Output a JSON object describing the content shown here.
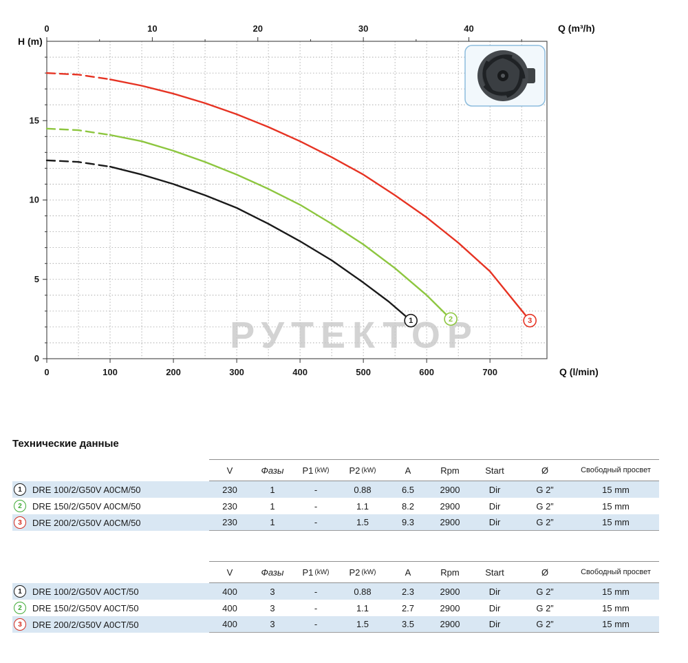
{
  "section": {
    "title": "Технические данные"
  },
  "chart": {
    "y_axis_label": "H (m)",
    "top_axis_label": "Q (m³/h)",
    "bottom_axis_label": "Q (l/min)",
    "top_ticks": [
      0,
      10,
      20,
      30,
      40
    ],
    "bottom_ticks": [
      0,
      100,
      200,
      300,
      400,
      500,
      600,
      700
    ],
    "y_ticks": [
      0,
      5,
      10,
      15
    ],
    "watermark": "РУТЕКТОР"
  },
  "chart_data": {
    "type": "line",
    "title": "Pump performance curves H-Q",
    "xlabel": "Q (l/min)",
    "x2label": "Q (m³/h)",
    "ylabel": "H (m)",
    "xlim": [
      0,
      790
    ],
    "ylim": [
      0,
      20
    ],
    "grid": true,
    "series": [
      {
        "name": "1",
        "color": "#1a1a1a",
        "dashed_to": 100,
        "points": [
          [
            0,
            12.5
          ],
          [
            50,
            12.4
          ],
          [
            100,
            12.1
          ],
          [
            150,
            11.6
          ],
          [
            200,
            11.0
          ],
          [
            250,
            10.3
          ],
          [
            300,
            9.5
          ],
          [
            350,
            8.5
          ],
          [
            400,
            7.4
          ],
          [
            450,
            6.2
          ],
          [
            500,
            4.8
          ],
          [
            540,
            3.6
          ],
          [
            575,
            2.4
          ]
        ]
      },
      {
        "name": "2",
        "color": "#8dc63f",
        "dashed_to": 100,
        "points": [
          [
            0,
            14.5
          ],
          [
            50,
            14.4
          ],
          [
            100,
            14.1
          ],
          [
            150,
            13.7
          ],
          [
            200,
            13.1
          ],
          [
            250,
            12.4
          ],
          [
            300,
            11.6
          ],
          [
            350,
            10.7
          ],
          [
            400,
            9.7
          ],
          [
            450,
            8.5
          ],
          [
            500,
            7.2
          ],
          [
            550,
            5.7
          ],
          [
            600,
            4.0
          ],
          [
            638,
            2.5
          ]
        ]
      },
      {
        "name": "3",
        "color": "#e63323",
        "dashed_to": 100,
        "points": [
          [
            0,
            18.0
          ],
          [
            50,
            17.9
          ],
          [
            100,
            17.6
          ],
          [
            150,
            17.2
          ],
          [
            200,
            16.7
          ],
          [
            250,
            16.1
          ],
          [
            300,
            15.4
          ],
          [
            350,
            14.6
          ],
          [
            400,
            13.7
          ],
          [
            450,
            12.7
          ],
          [
            500,
            11.6
          ],
          [
            550,
            10.3
          ],
          [
            600,
            8.9
          ],
          [
            650,
            7.3
          ],
          [
            700,
            5.5
          ],
          [
            763,
            2.4
          ]
        ]
      }
    ]
  },
  "tables": {
    "columns": [
      {
        "key": "v",
        "label": "V"
      },
      {
        "key": "phases",
        "label": "Фазы",
        "italic": true
      },
      {
        "key": "p1",
        "label": "P1 (kW)",
        "small_paren": true
      },
      {
        "key": "p2",
        "label": "P2 (kW)",
        "small_paren": true
      },
      {
        "key": "a",
        "label": "A"
      },
      {
        "key": "rpm",
        "label": "Rpm"
      },
      {
        "key": "start",
        "label": "Start"
      },
      {
        "key": "d",
        "label": "Ø"
      },
      {
        "key": "clearance",
        "label": "Свободный просвет",
        "two_line": true
      }
    ],
    "groups": [
      {
        "rows": [
          {
            "badge": "1",
            "color": "#1a1a1a",
            "model": "DRE 100/2/G50V A0CM/50",
            "v": "230",
            "phases": "1",
            "p1": "-",
            "p2": "0.88",
            "a": "6.5",
            "rpm": "2900",
            "start": "Dir",
            "d": "G 2”",
            "clearance": "15 mm"
          },
          {
            "badge": "2",
            "color": "#3faa35",
            "model": "DRE 150/2/G50V A0CM/50",
            "v": "230",
            "phases": "1",
            "p1": "-",
            "p2": "1.1",
            "a": "8.2",
            "rpm": "2900",
            "start": "Dir",
            "d": "G 2”",
            "clearance": "15 mm"
          },
          {
            "badge": "3",
            "color": "#d42b1e",
            "model": "DRE 200/2/G50V A0CM/50",
            "v": "230",
            "phases": "1",
            "p1": "-",
            "p2": "1.5",
            "a": "9.3",
            "rpm": "2900",
            "start": "Dir",
            "d": "G 2”",
            "clearance": "15 mm"
          }
        ]
      },
      {
        "rows": [
          {
            "badge": "1",
            "color": "#1a1a1a",
            "model": "DRE 100/2/G50V A0CT/50",
            "v": "400",
            "phases": "3",
            "p1": "-",
            "p2": "0.88",
            "a": "2.3",
            "rpm": "2900",
            "start": "Dir",
            "d": "G 2”",
            "clearance": "15 mm"
          },
          {
            "badge": "2",
            "color": "#3faa35",
            "model": "DRE 150/2/G50V A0CT/50",
            "v": "400",
            "phases": "3",
            "p1": "-",
            "p2": "1.1",
            "a": "2.7",
            "rpm": "2900",
            "start": "Dir",
            "d": "G 2”",
            "clearance": "15 mm"
          },
          {
            "badge": "3",
            "color": "#d42b1e",
            "model": "DRE 200/2/G50V A0CT/50",
            "v": "400",
            "phases": "3",
            "p1": "-",
            "p2": "1.5",
            "a": "3.5",
            "rpm": "2900",
            "start": "Dir",
            "d": "G 2”",
            "clearance": "15 mm"
          }
        ]
      }
    ]
  }
}
